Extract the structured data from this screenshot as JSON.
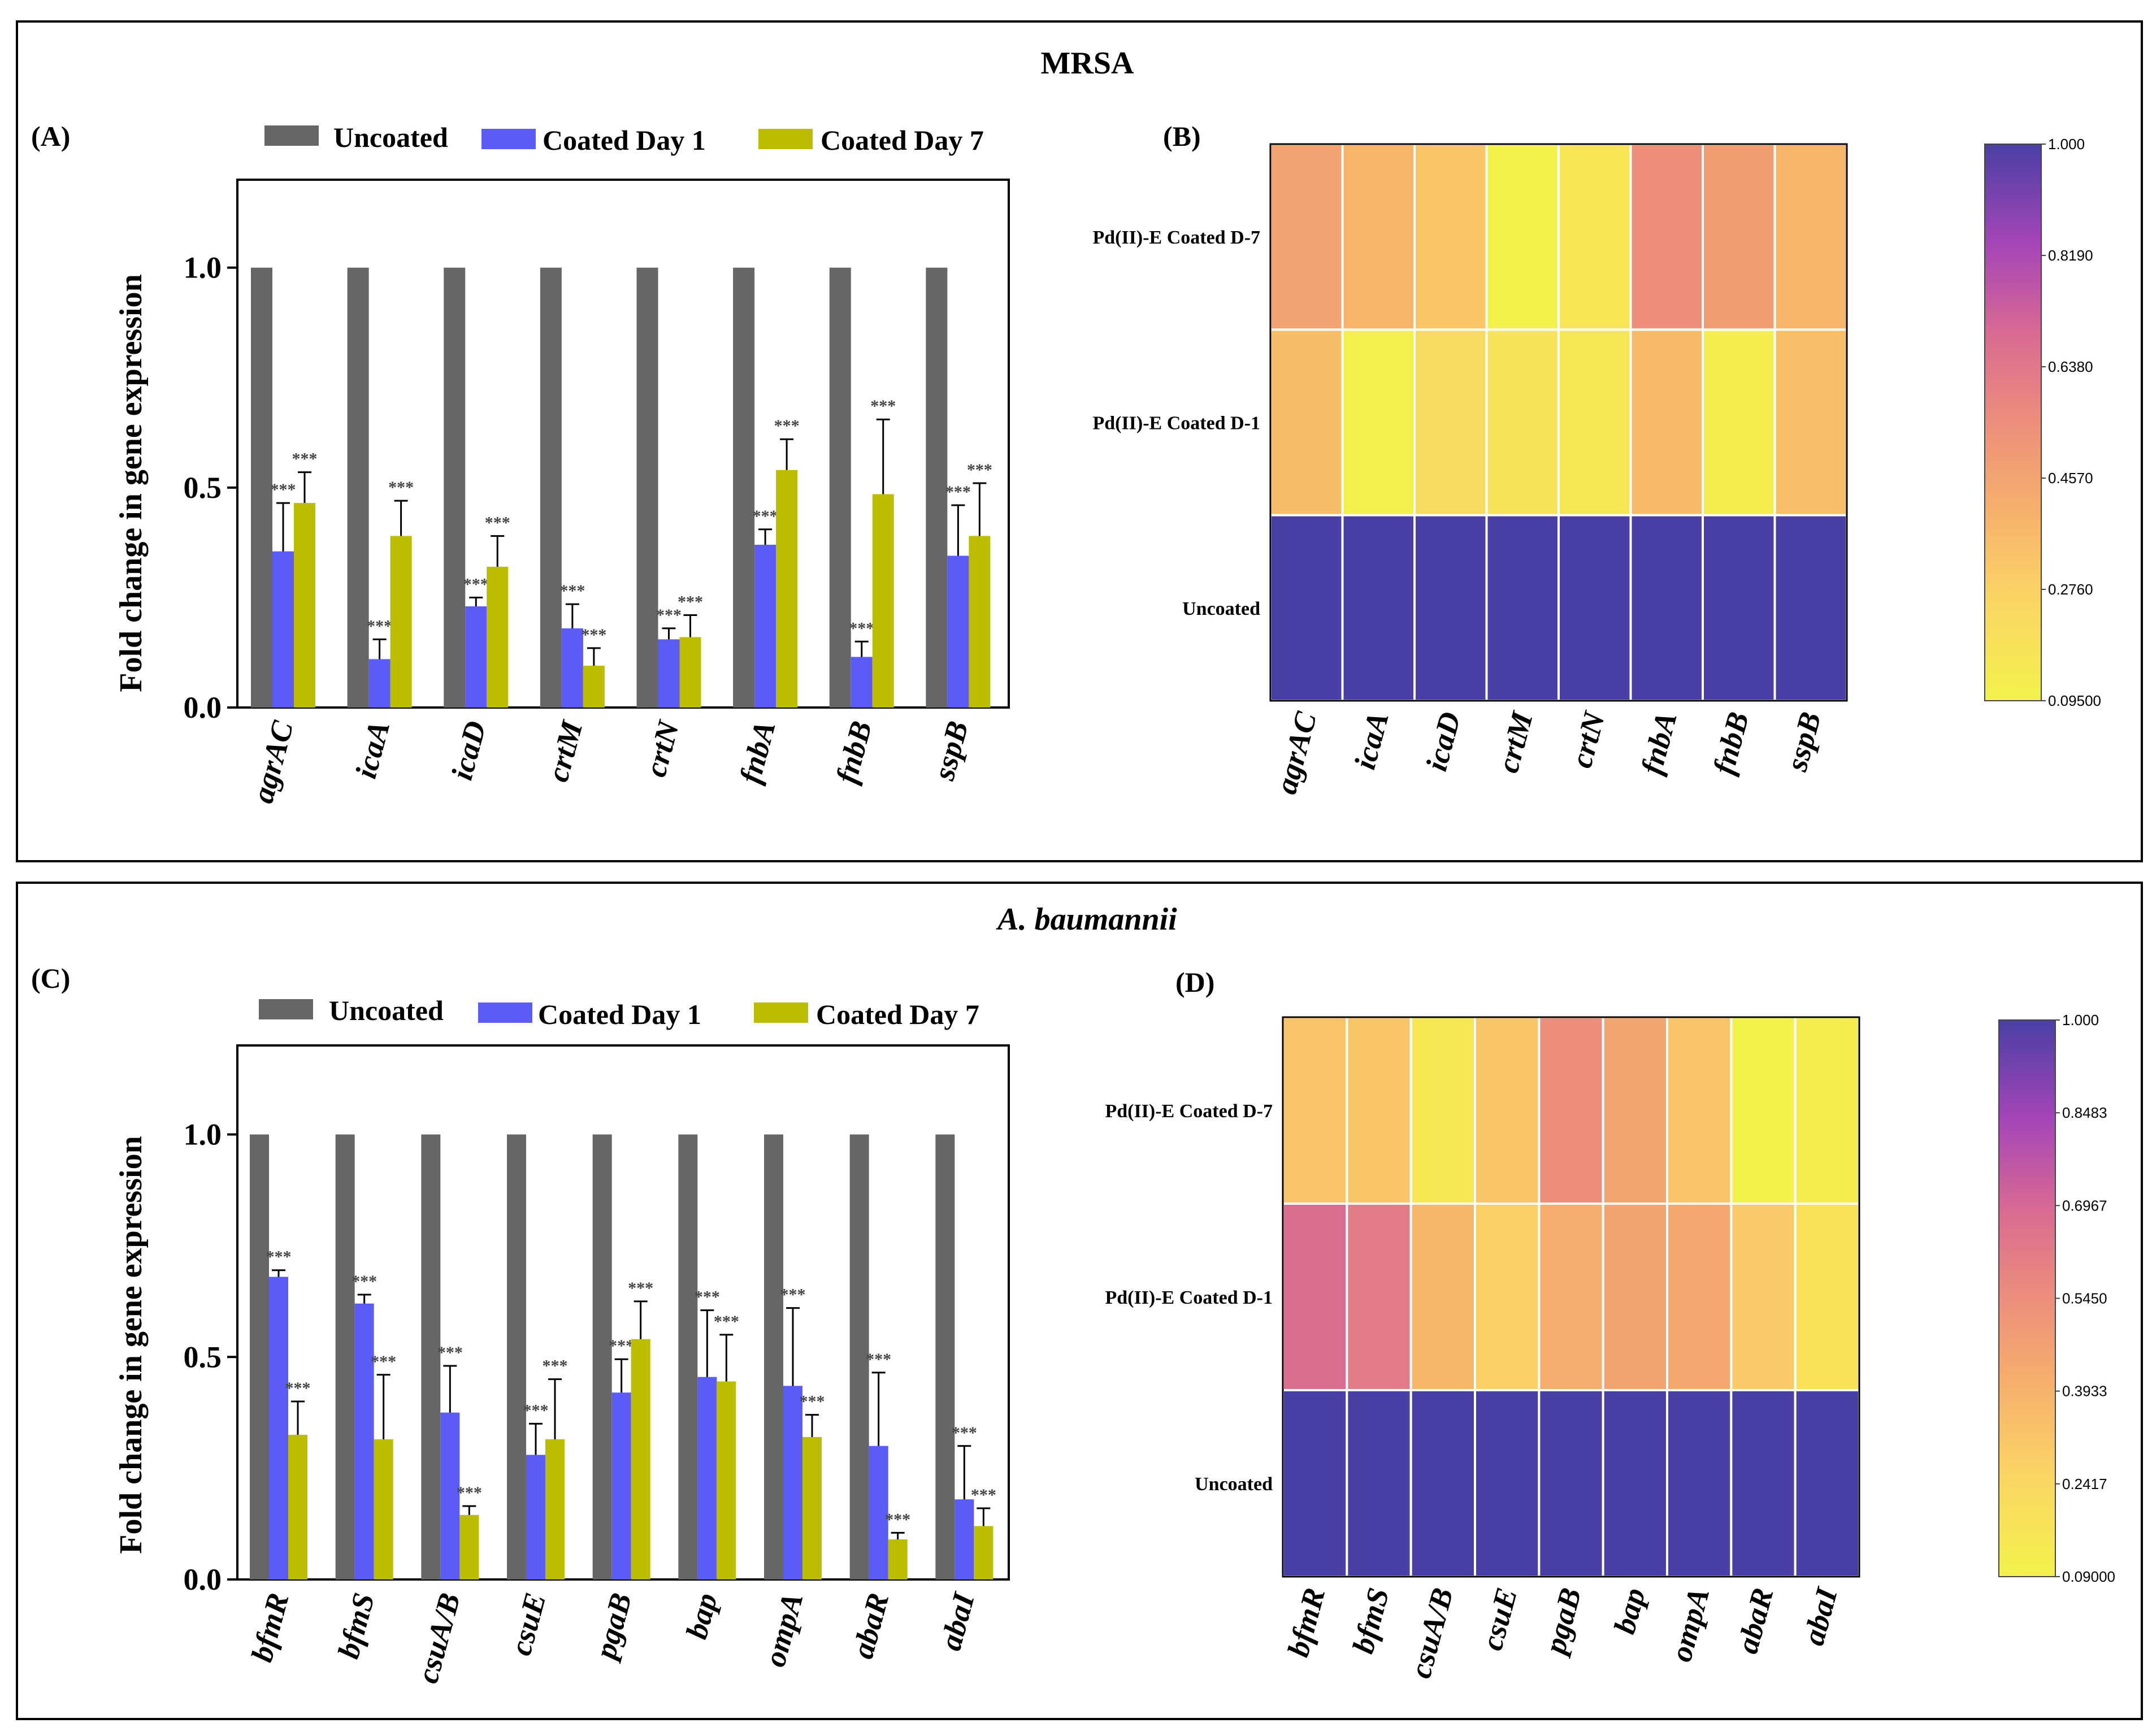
{
  "chart_data": [
    {
      "id": "A",
      "type": "bar",
      "section_title": "MRSA",
      "panel_label": "(A)",
      "legend": [
        "Uncoated",
        "Coated Day 1",
        "Coated Day 7"
      ],
      "ylabel": "Fold change in gene expression",
      "ylim": [
        0,
        1.2
      ],
      "yticks": [
        "0.0",
        "0.5",
        "1.0"
      ],
      "categories": [
        "agrAC",
        "icaA",
        "icaD",
        "crtM",
        "crtN",
        "fnbA",
        "fnbB",
        "sspB"
      ],
      "series": [
        {
          "name": "Uncoated",
          "values": [
            1,
            1,
            1,
            1,
            1,
            1,
            1,
            1
          ],
          "errors": [
            0,
            0,
            0,
            0,
            0,
            0,
            0,
            0
          ],
          "color": "#666666"
        },
        {
          "name": "Coated Day 1",
          "values": [
            0.355,
            0.11,
            0.23,
            0.18,
            0.155,
            0.37,
            0.115,
            0.345
          ],
          "errors": [
            0.11,
            0.045,
            0.02,
            0.055,
            0.025,
            0.035,
            0.035,
            0.115
          ],
          "color": "#5B5BF5"
        },
        {
          "name": "Coated Day 7",
          "values": [
            0.465,
            0.39,
            0.32,
            0.095,
            0.16,
            0.54,
            0.485,
            0.39
          ],
          "errors": [
            0.07,
            0.08,
            0.07,
            0.04,
            0.05,
            0.07,
            0.17,
            0.12
          ],
          "color": "#BDBD00"
        }
      ],
      "significance": "***"
    },
    {
      "id": "B",
      "type": "heatmap",
      "panel_label": "(B)",
      "rows": [
        "Pd(II)-E Coated D-7",
        "Pd(II)-E Coated D-1",
        "Uncoated"
      ],
      "columns": [
        "agrAC",
        "icaA",
        "icaD",
        "crtM",
        "crtN",
        "fnbA",
        "fnbB",
        "sspB"
      ],
      "values": [
        [
          0.465,
          0.39,
          0.32,
          0.095,
          0.16,
          0.54,
          0.485,
          0.39
        ],
        [
          0.355,
          0.11,
          0.23,
          0.18,
          0.155,
          0.37,
          0.115,
          0.345
        ],
        [
          1,
          1,
          1,
          1,
          1,
          1,
          1,
          1
        ]
      ],
      "colorbar": {
        "min": 0.095,
        "max": 1.0,
        "ticks": [
          "1.000",
          "0.8190",
          "0.6380",
          "0.4570",
          "0.2760",
          "0.09500"
        ]
      }
    },
    {
      "id": "C",
      "type": "bar",
      "section_title": "A. baumannii",
      "panel_label": "(C)",
      "legend": [
        "Uncoated",
        "Coated Day 1",
        "Coated Day 7"
      ],
      "ylabel": "Fold change in gene expression",
      "ylim": [
        0,
        1.2
      ],
      "yticks": [
        "0.0",
        "0.5",
        "1.0"
      ],
      "categories": [
        "bfmR",
        "bfmS",
        "csuA/B",
        "csuE",
        "pgaB",
        "bap",
        "ompA",
        "abaR",
        "abaI"
      ],
      "series": [
        {
          "name": "Uncoated",
          "values": [
            1,
            1,
            1,
            1,
            1,
            1,
            1,
            1,
            1
          ],
          "errors": [
            0,
            0,
            0,
            0,
            0,
            0,
            0,
            0,
            0
          ],
          "color": "#666666"
        },
        {
          "name": "Coated Day 1",
          "values": [
            0.68,
            0.62,
            0.375,
            0.28,
            0.42,
            0.455,
            0.435,
            0.3,
            0.18
          ],
          "errors": [
            0.015,
            0.02,
            0.105,
            0.07,
            0.075,
            0.15,
            0.175,
            0.165,
            0.12
          ],
          "color": "#5B5BF5"
        },
        {
          "name": "Coated Day 7",
          "values": [
            0.325,
            0.315,
            0.145,
            0.315,
            0.54,
            0.445,
            0.32,
            0.09,
            0.12
          ],
          "errors": [
            0.075,
            0.145,
            0.02,
            0.135,
            0.085,
            0.105,
            0.05,
            0.015,
            0.04
          ],
          "color": "#BDBD00"
        }
      ],
      "significance": "***"
    },
    {
      "id": "D",
      "type": "heatmap",
      "panel_label": "(D)",
      "rows": [
        "Pd(II)-E Coated D-7",
        "Pd(II)-E Coated D-1",
        "Uncoated"
      ],
      "columns": [
        "bfmR",
        "bfmS",
        "csuA/B",
        "csuE",
        "pgaB",
        "bap",
        "ompA",
        "abaR",
        "abaI"
      ],
      "values": [
        [
          0.325,
          0.315,
          0.145,
          0.315,
          0.54,
          0.445,
          0.32,
          0.09,
          0.12
        ],
        [
          0.68,
          0.62,
          0.375,
          0.28,
          0.42,
          0.455,
          0.435,
          0.3,
          0.18
        ],
        [
          1,
          1,
          1,
          1,
          1,
          1,
          1,
          1,
          1
        ]
      ],
      "colorbar": {
        "min": 0.09,
        "max": 1.0,
        "ticks": [
          "1.000",
          "0.8483",
          "0.6967",
          "0.5450",
          "0.3933",
          "0.2417",
          "0.09000"
        ]
      }
    }
  ]
}
